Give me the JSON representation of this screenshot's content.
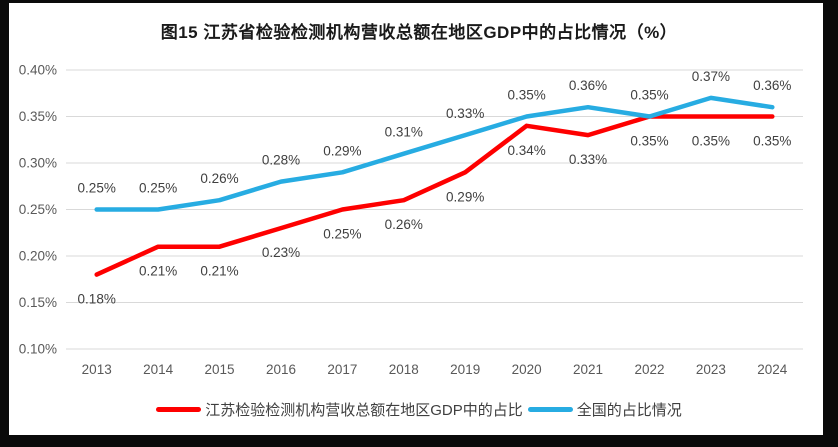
{
  "chart_data": {
    "type": "line",
    "title": "图15  江苏省检验检测机构营收总额在地区GDP中的占比情况（%）",
    "categories": [
      "2013",
      "2014",
      "2015",
      "2016",
      "2017",
      "2018",
      "2019",
      "2020",
      "2021",
      "2022",
      "2023",
      "2024"
    ],
    "series": [
      {
        "id": "jiangsu",
        "name": "江苏检验检测机构营收总额在地区GDP中的占比",
        "color": "#fe0000",
        "values": [
          0.18,
          0.21,
          0.21,
          0.23,
          0.25,
          0.26,
          0.29,
          0.34,
          0.33,
          0.35,
          0.35,
          0.35
        ],
        "labels": [
          "0.18%",
          "0.21%",
          "0.21%",
          "0.23%",
          "0.25%",
          "0.26%",
          "0.29%",
          "0.34%",
          "0.33%",
          "0.35%",
          "0.35%",
          "0.35%"
        ],
        "label_position": "below"
      },
      {
        "id": "national",
        "name": "全国的占比情况",
        "color": "#27ace2",
        "values": [
          0.25,
          0.25,
          0.26,
          0.28,
          0.29,
          0.31,
          0.33,
          0.35,
          0.36,
          0.35,
          0.37,
          0.36
        ],
        "labels": [
          "0.25%",
          "0.25%",
          "0.26%",
          "0.28%",
          "0.29%",
          "0.31%",
          "0.33%",
          "0.35%",
          "0.36%",
          "0.35%",
          "0.37%",
          "0.36%"
        ],
        "label_position": "above"
      }
    ],
    "yticks": [
      "0.40%",
      "0.35%",
      "0.30%",
      "0.25%",
      "0.20%",
      "0.15%",
      "0.10%"
    ],
    "ylim": [
      0.1,
      0.4
    ],
    "xlabel": "",
    "ylabel": "",
    "grid": true,
    "gridline_color": "#d9d9d9",
    "legend_position": "bottom"
  },
  "legend": {
    "items": [
      {
        "label": "江苏检验检测机构营收总额在地区GDP中的占比",
        "color": "#fe0000"
      },
      {
        "label": "全国的占比情况",
        "color": "#27ace2"
      }
    ]
  }
}
